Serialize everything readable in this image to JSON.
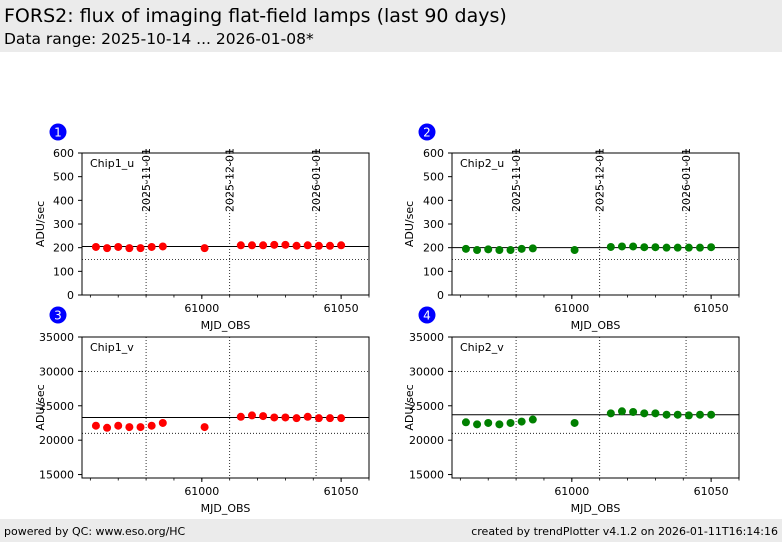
{
  "header": {
    "title": "FORS2: flux of imaging flat-field lamps (last 90 days)",
    "subtitle": "Data range: 2025-10-14 ... 2026-01-08*"
  },
  "footer": {
    "left": "powered by QC: www.eso.org/HC",
    "right": "created by trendPlotter v4.1.2 on 2026-01-11T16:14:16"
  },
  "colors": {
    "chip1": "#ff0000",
    "chip2": "#008000",
    "badge": "#0000ff"
  },
  "chart_data": [
    {
      "type": "scatter",
      "panel": "1",
      "label": "Chip1_u",
      "color": "#ff0000",
      "xlabel": "MJD_OBS",
      "ylabel": "ADU/sec",
      "xlim": [
        60957,
        61060
      ],
      "ylim": [
        0,
        600
      ],
      "yticks": [
        0,
        100,
        200,
        300,
        400,
        500,
        600
      ],
      "xticks": [
        61000,
        61050
      ],
      "xtick_labels": [
        "61000",
        "61050"
      ],
      "date_lines": [
        60980,
        61010,
        61041
      ],
      "date_labels": [
        "2025-11-01",
        "2025-12-01",
        "2026-01-01"
      ],
      "ref_line": 205,
      "limit_lines": [
        150
      ],
      "x": [
        60962,
        60966,
        60970,
        60974,
        60978,
        60982,
        60986,
        61001,
        61014,
        61018,
        61022,
        61026,
        61030,
        61034,
        61038,
        61042,
        61046,
        61050
      ],
      "y": [
        203,
        198,
        203,
        198,
        198,
        203,
        205,
        198,
        210,
        210,
        210,
        212,
        212,
        208,
        210,
        208,
        208,
        210
      ]
    },
    {
      "type": "scatter",
      "panel": "2",
      "label": "Chip2_u",
      "color": "#008000",
      "xlabel": "MJD_OBS",
      "ylabel": "ADU/sec",
      "xlim": [
        60957,
        61060
      ],
      "ylim": [
        0,
        600
      ],
      "yticks": [
        0,
        100,
        200,
        300,
        400,
        500,
        600
      ],
      "xticks": [
        61000,
        61050
      ],
      "xtick_labels": [
        "61000",
        "61050"
      ],
      "date_lines": [
        60980,
        61010,
        61041
      ],
      "date_labels": [
        "2025-11-01",
        "2025-12-01",
        "2026-01-01"
      ],
      "ref_line": 200,
      "limit_lines": [
        150
      ],
      "x": [
        60962,
        60966,
        60970,
        60974,
        60978,
        60982,
        60986,
        61001,
        61014,
        61018,
        61022,
        61026,
        61030,
        61034,
        61038,
        61042,
        61046,
        61050
      ],
      "y": [
        195,
        190,
        193,
        190,
        190,
        195,
        197,
        190,
        203,
        205,
        205,
        202,
        202,
        200,
        200,
        200,
        200,
        202
      ]
    },
    {
      "type": "scatter",
      "panel": "3",
      "label": "Chip1_v",
      "color": "#ff0000",
      "xlabel": "MJD_OBS",
      "ylabel": "ADU/sec",
      "xlim": [
        60957,
        61060
      ],
      "ylim": [
        14500,
        35000
      ],
      "yticks": [
        15000,
        20000,
        25000,
        30000,
        35000
      ],
      "xticks": [
        61000,
        61050
      ],
      "xtick_labels": [
        "61000",
        "61050"
      ],
      "date_lines": [
        60980,
        61010,
        61041
      ],
      "ref_line": 23300,
      "limit_lines": [
        21000,
        30000
      ],
      "x": [
        60962,
        60966,
        60970,
        60974,
        60978,
        60982,
        60986,
        61001,
        61014,
        61018,
        61022,
        61026,
        61030,
        61034,
        61038,
        61042,
        61046,
        61050
      ],
      "y": [
        22100,
        21800,
        22100,
        21900,
        21900,
        22100,
        22500,
        21900,
        23400,
        23600,
        23500,
        23300,
        23300,
        23200,
        23400,
        23200,
        23200,
        23200
      ]
    },
    {
      "type": "scatter",
      "panel": "4",
      "label": "Chip2_v",
      "color": "#008000",
      "xlabel": "MJD_OBS",
      "ylabel": "ADU/sec",
      "xlim": [
        60957,
        61060
      ],
      "ylim": [
        14500,
        35000
      ],
      "yticks": [
        15000,
        20000,
        25000,
        30000,
        35000
      ],
      "xticks": [
        61000,
        61050
      ],
      "xtick_labels": [
        "61000",
        "61050"
      ],
      "date_lines": [
        60980,
        61010,
        61041
      ],
      "ref_line": 23700,
      "limit_lines": [
        21000,
        30000
      ],
      "x": [
        60962,
        60966,
        60970,
        60974,
        60978,
        60982,
        60986,
        61001,
        61014,
        61018,
        61022,
        61026,
        61030,
        61034,
        61038,
        61042,
        61046,
        61050
      ],
      "y": [
        22600,
        22300,
        22500,
        22300,
        22500,
        22700,
        23000,
        22500,
        23900,
        24200,
        24100,
        23900,
        23900,
        23700,
        23700,
        23600,
        23700,
        23700
      ]
    }
  ]
}
